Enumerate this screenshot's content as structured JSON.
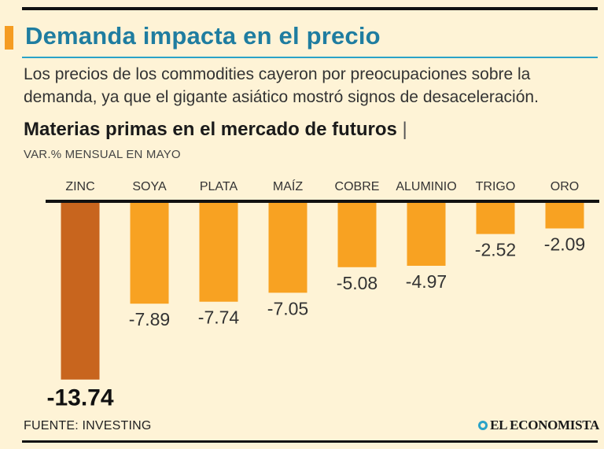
{
  "header": {
    "title": "Demanda impacta en el precio",
    "subtitle": "Los precios de los commodities cayeron por preocupaciones sobre la demanda, ya que el gigante asiático mostró signos de desaceleración."
  },
  "chart_data": {
    "type": "bar",
    "title": "Materias primas en el mercado de futuros",
    "title_separator": "|",
    "unit_label": "VAR.% MENSUAL EN MAYO",
    "categories": [
      "ZINC",
      "SOYA",
      "PLATA",
      "MAÍZ",
      "COBRE",
      "ALUMINIO",
      "TRIGO",
      "ORO"
    ],
    "values": [
      -13.74,
      -7.89,
      -7.74,
      -7.05,
      -5.08,
      -4.97,
      -2.52,
      -2.09
    ],
    "value_labels": [
      "-13.74",
      "-7.89",
      "-7.74",
      "-7.05",
      "-5.08",
      "-4.97",
      "-2.52",
      "-2.09"
    ],
    "highlight_index": 0,
    "ylim": [
      -14,
      0
    ],
    "grid": false,
    "legend": "none",
    "colors": {
      "bar": "#f8a222",
      "highlight": "#c8651e",
      "baseline": "#111111"
    }
  },
  "footer": {
    "source": "FUENTE: INVESTING",
    "logo_text": "EL ECONOMISTA",
    "logo_icon": "el-economista-logo-icon"
  }
}
